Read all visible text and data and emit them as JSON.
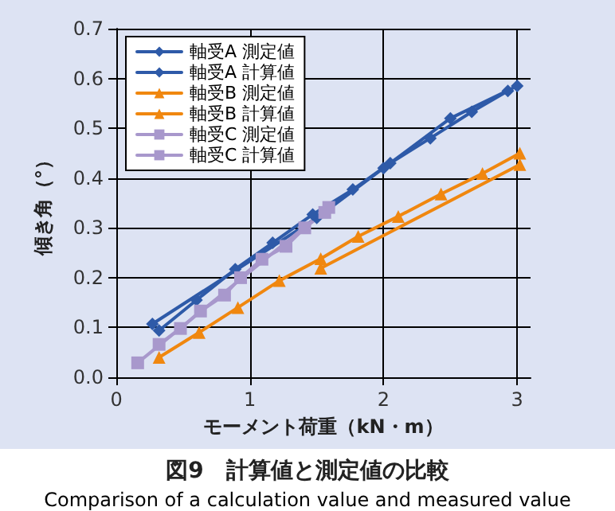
{
  "chart_data": {
    "type": "line",
    "title": "図9　計算値と測定値の比較",
    "subtitle": "Comparison of a calculation value and measured value",
    "xlabel": "モーメント荷重（kN・m）",
    "ylabel": "傾き角（°）",
    "xlim": [
      0,
      3.1
    ],
    "xticks": [
      0,
      1,
      2,
      3
    ],
    "ylim": [
      0,
      0.7
    ],
    "yticks": [
      {
        "value": 0,
        "label": "0.0"
      },
      0.1,
      0.2,
      0.3,
      0.4,
      0.5,
      0.6,
      0.7
    ],
    "grid": true,
    "legend": "top left",
    "line_style": "solid",
    "series": [
      {
        "name": "軸受A 測定値",
        "color": "#2e5aa8",
        "marker": "diamond",
        "x": [
          0.27,
          1.5,
          2.0,
          2.5,
          3.0
        ],
        "values": [
          0.107,
          0.32,
          0.42,
          0.52,
          0.585
        ]
      },
      {
        "name": "軸受A 計算値",
        "color": "#2e5aa8",
        "marker": "diamond",
        "x": [
          0.32,
          0.6,
          0.89,
          1.17,
          1.47,
          1.77,
          2.05,
          2.35,
          2.66,
          2.93
        ],
        "values": [
          0.094,
          0.155,
          0.217,
          0.27,
          0.327,
          0.377,
          0.43,
          0.48,
          0.533,
          0.575
        ]
      },
      {
        "name": "軸受B 測定値",
        "color": "#f0870f",
        "marker": "triangle",
        "x": [
          1.53,
          3.02
        ],
        "values": [
          0.219,
          0.427
        ]
      },
      {
        "name": "軸受B 計算値",
        "color": "#f0870f",
        "marker": "triangle",
        "x": [
          0.32,
          0.62,
          0.91,
          1.22,
          1.53,
          1.81,
          2.11,
          2.43,
          2.74,
          3.02
        ],
        "values": [
          0.04,
          0.09,
          0.14,
          0.194,
          0.238,
          0.283,
          0.323,
          0.368,
          0.409,
          0.45
        ]
      },
      {
        "name": "軸受C 測定値",
        "color": "#a898cc",
        "marker": "square",
        "x": [
          0.16,
          1.59
        ],
        "values": [
          0.029,
          0.341
        ]
      },
      {
        "name": "軸受C 計算値",
        "color": "#a898cc",
        "marker": "square",
        "x": [
          0.32,
          0.48,
          0.63,
          0.81,
          0.93,
          1.09,
          1.27,
          1.41,
          1.56
        ],
        "values": [
          0.066,
          0.098,
          0.133,
          0.165,
          0.2,
          0.237,
          0.263,
          0.3,
          0.331
        ]
      }
    ]
  }
}
